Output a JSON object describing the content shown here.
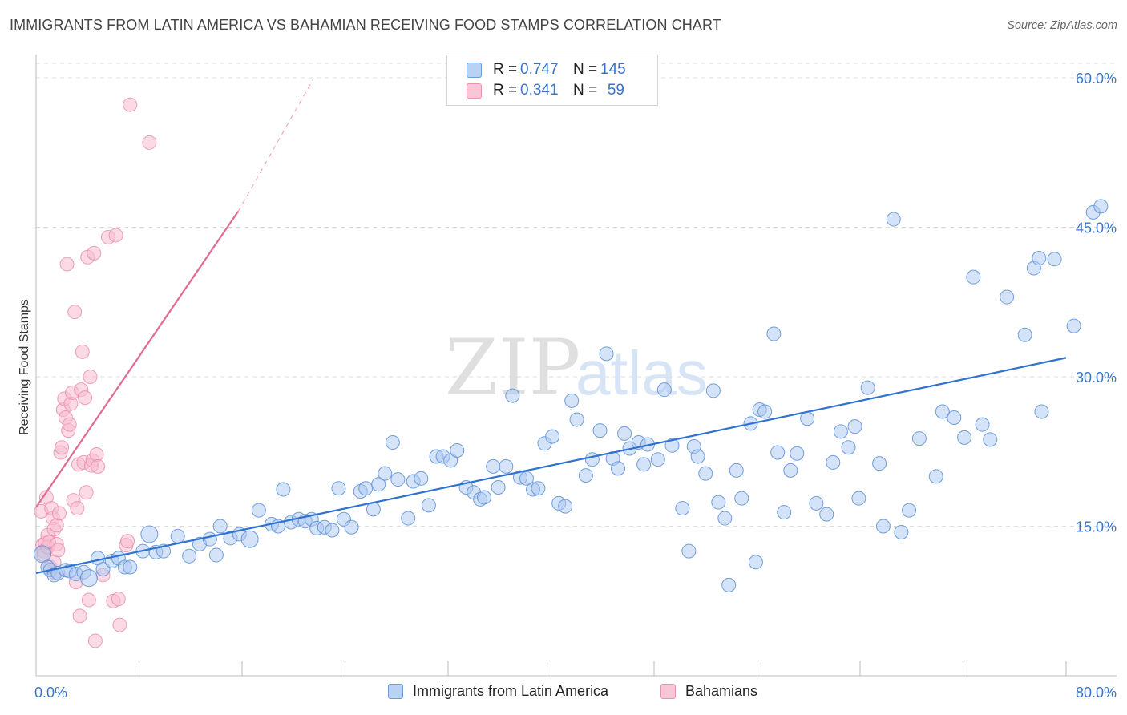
{
  "title": "IMMIGRANTS FROM LATIN AMERICA VS BAHAMIAN RECEIVING FOOD STAMPS CORRELATION CHART",
  "source": "Source: ZipAtlas.com",
  "legend": {
    "rows": [
      {
        "r_label": "R =",
        "r_value": "0.747",
        "n_label": "N =",
        "n_value": "145"
      },
      {
        "r_label": "R =",
        "r_value": "0.341",
        "n_label": "N =",
        "n_value": "59"
      }
    ]
  },
  "bottom_legend": [
    "Immigrants from Latin America",
    "Bahamians"
  ],
  "colors": {
    "blue_fill": "#a9c8f0",
    "blue_stroke": "#5a8fd8",
    "blue_line": "#2f72d0",
    "pink_fill": "#f7bccf",
    "pink_stroke": "#e88aa8",
    "pink_line": "#e06a93",
    "tick_text": "#3a74c9"
  },
  "chart_data": {
    "type": "scatter",
    "title": "IMMIGRANTS FROM LATIN AMERICA VS BAHAMIAN RECEIVING FOOD STAMPS CORRELATION CHART",
    "xlabel": "",
    "ylabel": "Receiving Food Stamps",
    "xlim": [
      0,
      80
    ],
    "ylim": [
      0,
      60
    ],
    "x_tick_labels": [
      "0.0%",
      "80.0%"
    ],
    "y_ticks": [
      15,
      30,
      45,
      60
    ],
    "y_tick_labels": [
      "15.0%",
      "30.0%",
      "45.0%",
      "60.0%"
    ],
    "grid": true,
    "legend_position": "top-center",
    "series": [
      {
        "name": "Immigrants from Latin America",
        "r": 0.747,
        "n": 145,
        "trend": {
          "x": [
            0,
            80
          ],
          "y": [
            10.3,
            31.9
          ]
        },
        "points": [
          [
            0.5,
            12.2
          ],
          [
            0.9,
            10.9
          ],
          [
            1.1,
            10.6
          ],
          [
            1.4,
            10.1
          ],
          [
            1.7,
            10.3
          ],
          [
            2.3,
            10.6
          ],
          [
            2.6,
            10.5
          ],
          [
            3.1,
            10.2
          ],
          [
            3.7,
            10.4
          ],
          [
            4.1,
            9.8
          ],
          [
            4.8,
            11.8
          ],
          [
            5.2,
            10.7
          ],
          [
            5.9,
            11.5
          ],
          [
            6.4,
            11.8
          ],
          [
            6.9,
            10.9
          ],
          [
            7.3,
            10.9
          ],
          [
            8.3,
            12.5
          ],
          [
            8.8,
            14.2
          ],
          [
            9.3,
            12.4
          ],
          [
            9.9,
            12.5
          ],
          [
            11.0,
            14.0
          ],
          [
            11.9,
            12.0
          ],
          [
            12.7,
            13.2
          ],
          [
            13.5,
            13.7
          ],
          [
            14.0,
            12.1
          ],
          [
            14.3,
            15.0
          ],
          [
            15.1,
            13.8
          ],
          [
            15.8,
            14.2
          ],
          [
            16.6,
            13.7
          ],
          [
            17.3,
            16.6
          ],
          [
            18.3,
            15.2
          ],
          [
            18.8,
            15.0
          ],
          [
            19.2,
            18.7
          ],
          [
            19.8,
            15.4
          ],
          [
            20.4,
            15.7
          ],
          [
            20.9,
            15.5
          ],
          [
            21.4,
            15.7
          ],
          [
            21.8,
            14.8
          ],
          [
            22.4,
            14.9
          ],
          [
            23.0,
            14.6
          ],
          [
            23.5,
            18.8
          ],
          [
            23.9,
            15.7
          ],
          [
            24.5,
            14.9
          ],
          [
            25.2,
            18.5
          ],
          [
            25.6,
            18.8
          ],
          [
            26.2,
            16.7
          ],
          [
            26.6,
            19.2
          ],
          [
            27.1,
            20.3
          ],
          [
            27.7,
            23.4
          ],
          [
            28.1,
            19.7
          ],
          [
            28.9,
            15.8
          ],
          [
            29.3,
            19.5
          ],
          [
            29.9,
            19.8
          ],
          [
            30.5,
            17.1
          ],
          [
            31.1,
            22.0
          ],
          [
            31.6,
            22.0
          ],
          [
            32.2,
            21.6
          ],
          [
            32.7,
            22.6
          ],
          [
            33.4,
            18.9
          ],
          [
            34.0,
            18.4
          ],
          [
            34.5,
            17.7
          ],
          [
            34.8,
            17.9
          ],
          [
            35.5,
            21.0
          ],
          [
            35.9,
            18.9
          ],
          [
            36.5,
            21.0
          ],
          [
            37.0,
            28.1
          ],
          [
            37.6,
            19.9
          ],
          [
            38.1,
            19.8
          ],
          [
            38.6,
            18.7
          ],
          [
            39.0,
            18.8
          ],
          [
            39.5,
            23.3
          ],
          [
            40.1,
            24.0
          ],
          [
            40.6,
            17.3
          ],
          [
            41.1,
            17.0
          ],
          [
            41.6,
            27.6
          ],
          [
            42.0,
            25.7
          ],
          [
            42.7,
            20.1
          ],
          [
            43.2,
            21.7
          ],
          [
            43.8,
            24.6
          ],
          [
            44.3,
            32.3
          ],
          [
            44.8,
            21.8
          ],
          [
            45.2,
            20.8
          ],
          [
            45.7,
            24.3
          ],
          [
            46.1,
            22.8
          ],
          [
            46.8,
            23.4
          ],
          [
            47.2,
            21.2
          ],
          [
            47.5,
            23.2
          ],
          [
            48.3,
            21.7
          ],
          [
            48.8,
            28.7
          ],
          [
            49.4,
            23.1
          ],
          [
            50.2,
            16.8
          ],
          [
            50.7,
            12.5
          ],
          [
            51.1,
            23.0
          ],
          [
            51.4,
            22.0
          ],
          [
            52.0,
            20.3
          ],
          [
            52.6,
            28.6
          ],
          [
            53.0,
            17.4
          ],
          [
            53.5,
            15.8
          ],
          [
            53.8,
            9.1
          ],
          [
            54.4,
            20.6
          ],
          [
            54.8,
            17.8
          ],
          [
            55.5,
            25.3
          ],
          [
            55.9,
            11.4
          ],
          [
            56.2,
            26.7
          ],
          [
            56.6,
            26.5
          ],
          [
            57.3,
            34.3
          ],
          [
            57.6,
            22.4
          ],
          [
            58.1,
            16.4
          ],
          [
            58.6,
            20.6
          ],
          [
            59.1,
            22.3
          ],
          [
            59.9,
            25.8
          ],
          [
            60.6,
            17.3
          ],
          [
            61.4,
            16.2
          ],
          [
            61.9,
            21.4
          ],
          [
            62.5,
            24.5
          ],
          [
            63.1,
            22.9
          ],
          [
            63.6,
            25.0
          ],
          [
            63.9,
            17.8
          ],
          [
            64.6,
            28.9
          ],
          [
            65.5,
            21.3
          ],
          [
            65.8,
            15.0
          ],
          [
            66.6,
            45.8
          ],
          [
            67.2,
            14.4
          ],
          [
            67.8,
            16.6
          ],
          [
            68.6,
            23.8
          ],
          [
            69.9,
            20.0
          ],
          [
            70.4,
            26.5
          ],
          [
            71.3,
            25.9
          ],
          [
            72.1,
            23.9
          ],
          [
            72.8,
            40.0
          ],
          [
            73.5,
            25.2
          ],
          [
            74.1,
            23.7
          ],
          [
            75.4,
            38.0
          ],
          [
            76.8,
            34.2
          ],
          [
            77.5,
            40.9
          ],
          [
            77.9,
            41.9
          ],
          [
            78.1,
            26.5
          ],
          [
            79.1,
            41.8
          ],
          [
            80.6,
            35.1
          ],
          [
            82.1,
            46.5
          ],
          [
            82.7,
            47.1
          ]
        ]
      },
      {
        "name": "Bahamians",
        "r": 0.341,
        "n": 59,
        "trend": {
          "x": [
            0,
            15.7
          ],
          "y": [
            16.9,
            46.6
          ]
        },
        "trend_dashed": {
          "x": [
            15.7,
            21.5
          ],
          "y": [
            46.6,
            59.8
          ]
        },
        "points": [
          [
            0.4,
            16.5
          ],
          [
            0.5,
            13.1
          ],
          [
            0.6,
            12.5
          ],
          [
            0.6,
            12.1
          ],
          [
            0.7,
            13.3
          ],
          [
            0.8,
            17.9
          ],
          [
            0.9,
            14.1
          ],
          [
            0.9,
            12.9
          ],
          [
            1.0,
            13.4
          ],
          [
            1.1,
            10.9
          ],
          [
            1.2,
            16.8
          ],
          [
            1.3,
            15.8
          ],
          [
            1.4,
            14.7
          ],
          [
            1.4,
            11.4
          ],
          [
            1.5,
            10.3
          ],
          [
            1.6,
            15.1
          ],
          [
            1.6,
            13.2
          ],
          [
            1.7,
            12.6
          ],
          [
            1.8,
            16.3
          ],
          [
            1.9,
            22.4
          ],
          [
            2.0,
            22.9
          ],
          [
            2.1,
            26.7
          ],
          [
            2.2,
            27.8
          ],
          [
            2.3,
            25.9
          ],
          [
            2.4,
            41.3
          ],
          [
            2.5,
            24.6
          ],
          [
            2.6,
            25.2
          ],
          [
            2.7,
            27.3
          ],
          [
            2.8,
            28.4
          ],
          [
            2.9,
            17.6
          ],
          [
            3.0,
            36.5
          ],
          [
            3.1,
            9.4
          ],
          [
            3.2,
            16.8
          ],
          [
            3.3,
            21.2
          ],
          [
            3.4,
            6.0
          ],
          [
            3.5,
            28.7
          ],
          [
            3.6,
            32.5
          ],
          [
            3.7,
            21.4
          ],
          [
            3.8,
            27.9
          ],
          [
            3.9,
            18.4
          ],
          [
            4.0,
            42.0
          ],
          [
            4.1,
            7.6
          ],
          [
            4.2,
            30.0
          ],
          [
            4.3,
            21.1
          ],
          [
            4.4,
            21.6
          ],
          [
            4.5,
            42.4
          ],
          [
            4.6,
            3.5
          ],
          [
            4.7,
            22.2
          ],
          [
            4.8,
            21.0
          ],
          [
            5.2,
            10.1
          ],
          [
            5.6,
            44.0
          ],
          [
            6.0,
            7.5
          ],
          [
            6.2,
            44.2
          ],
          [
            6.5,
            5.1
          ],
          [
            6.4,
            7.7
          ],
          [
            7.0,
            13.1
          ],
          [
            7.1,
            13.5
          ],
          [
            7.3,
            57.3
          ],
          [
            8.8,
            53.5
          ]
        ]
      }
    ]
  }
}
